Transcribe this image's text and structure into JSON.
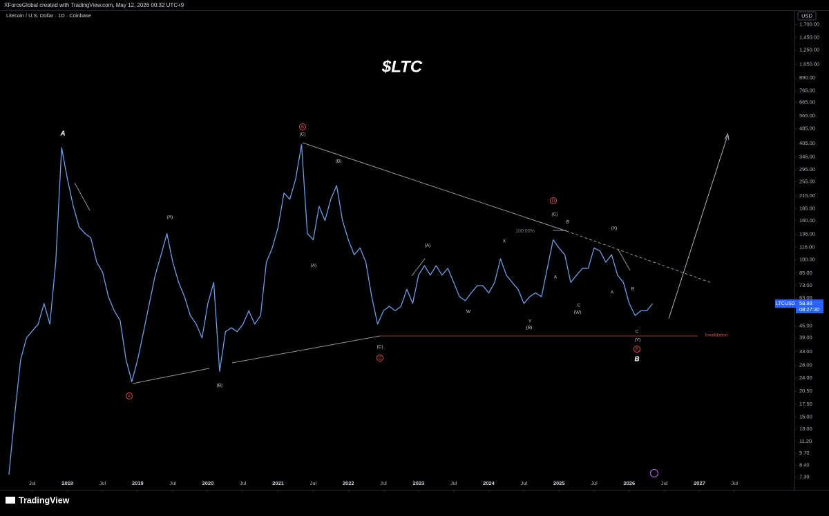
{
  "chart_data": {
    "type": "line",
    "credit": "XForceGlobal created with TradingView.com, May 12, 2026 00:32 UTC+9",
    "subtitle": "Litecoin / U.S. Dollar · 1D · Coinbase",
    "title": "$LTC",
    "currency": "USD",
    "symbol": "LTCUSD",
    "last_price": 58.88,
    "countdown": "08:27:30",
    "footer": "TradingView",
    "log_scale": true,
    "grid": false,
    "color": "#6f9fe6",
    "x": [
      "2017-03",
      "2017-04",
      "2017-05",
      "2017-06",
      "2017-08",
      "2017-09",
      "2017-10",
      "2017-11",
      "2017-12",
      "2018-01",
      "2018-02",
      "2018-03",
      "2018-04",
      "2018-05",
      "2018-06",
      "2018-07",
      "2018-08",
      "2018-09",
      "2018-10",
      "2018-11",
      "2018-12",
      "2019-01",
      "2019-02",
      "2019-03",
      "2019-04",
      "2019-05",
      "2019-06",
      "2019-07",
      "2019-08",
      "2019-09",
      "2019-10",
      "2019-11",
      "2019-12",
      "2020-01",
      "2020-02",
      "2020-03",
      "2020-04",
      "2020-05",
      "2020-06",
      "2020-07",
      "2020-08",
      "2020-09",
      "2020-10",
      "2020-11",
      "2020-12",
      "2021-01",
      "2021-02",
      "2021-03",
      "2021-04",
      "2021-05",
      "2021-06",
      "2021-07",
      "2021-08",
      "2021-09",
      "2021-10",
      "2021-11",
      "2021-12",
      "2022-01",
      "2022-02",
      "2022-03",
      "2022-04",
      "2022-05",
      "2022-06",
      "2022-07",
      "2022-08",
      "2022-09",
      "2022-10",
      "2022-11",
      "2022-12",
      "2023-01",
      "2023-02",
      "2023-03",
      "2023-04",
      "2023-05",
      "2023-06",
      "2023-07",
      "2023-08",
      "2023-09",
      "2023-10",
      "2023-11",
      "2023-12",
      "2024-01",
      "2024-02",
      "2024-03",
      "2024-04",
      "2024-05",
      "2024-06",
      "2024-07",
      "2024-08",
      "2024-09",
      "2024-10",
      "2024-11",
      "2024-12",
      "2025-01",
      "2025-02",
      "2025-03",
      "2025-04",
      "2025-05",
      "2025-06",
      "2025-07",
      "2025-08",
      "2025-09",
      "2025-10",
      "2025-11",
      "2025-12",
      "2026-01",
      "2026-02",
      "2026-03",
      "2026-04",
      "2026-05"
    ],
    "values": [
      7.5,
      15.6,
      30,
      39,
      46,
      59,
      46,
      97,
      385,
      264,
      190,
      148,
      137,
      130,
      97,
      86,
      64,
      54,
      48,
      30,
      23,
      30,
      42,
      59,
      83,
      106,
      137,
      97,
      76,
      64,
      51,
      46,
      39,
      59,
      76,
      26,
      42,
      44,
      42,
      46,
      54,
      46,
      51,
      97,
      115,
      148,
      223,
      207,
      264,
      400,
      137,
      127,
      190,
      160,
      207,
      244,
      160,
      127,
      106,
      115,
      97,
      64,
      46,
      54,
      57,
      54,
      57,
      70,
      59,
      83,
      93,
      83,
      93,
      83,
      90,
      76,
      64,
      61,
      67,
      73,
      73,
      67,
      76,
      101,
      83,
      76,
      70,
      59,
      64,
      67,
      64,
      90,
      127,
      115,
      106,
      76,
      83,
      90,
      90,
      115,
      111,
      97,
      106,
      83,
      76,
      59,
      51,
      54,
      54,
      58.88
    ],
    "xlim": [
      "2017-01",
      "2028-05"
    ],
    "xticks": [
      {
        "value": "2017-07",
        "label": "Jul"
      },
      {
        "value": "2018-01",
        "label": "2018"
      },
      {
        "value": "2018-07",
        "label": "Jul"
      },
      {
        "value": "2019-01",
        "label": "2019"
      },
      {
        "value": "2019-07",
        "label": "Jul"
      },
      {
        "value": "2020-01",
        "label": "2020"
      },
      {
        "value": "2020-07",
        "label": "Jul"
      },
      {
        "value": "2021-01",
        "label": "2021"
      },
      {
        "value": "2021-07",
        "label": "Jul"
      },
      {
        "value": "2022-01",
        "label": "2022"
      },
      {
        "value": "2022-07",
        "label": "Jul"
      },
      {
        "value": "2023-01",
        "label": "2023"
      },
      {
        "value": "2023-07",
        "label": "Jul"
      },
      {
        "value": "2024-01",
        "label": "2024"
      },
      {
        "value": "2024-07",
        "label": "Jul"
      },
      {
        "value": "2025-01",
        "label": "2025"
      },
      {
        "value": "2025-07",
        "label": "Jul"
      },
      {
        "value": "2026-01",
        "label": "2026"
      },
      {
        "value": "2026-07",
        "label": "Jul"
      },
      {
        "value": "2027-01",
        "label": "2027"
      },
      {
        "value": "2027-07",
        "label": "Jul"
      }
    ],
    "ylim": [
      6.8,
      1930
    ],
    "yticks": [
      {
        "value": 1700,
        "label": "1,700.00"
      },
      {
        "value": 1450,
        "label": "1,450.00"
      },
      {
        "value": 1250,
        "label": "1,250.00"
      },
      {
        "value": 1050,
        "label": "1,050.00"
      },
      {
        "value": 890,
        "label": "890.00"
      },
      {
        "value": 765,
        "label": "765.00"
      },
      {
        "value": 665,
        "label": "665.00"
      },
      {
        "value": 565,
        "label": "565.00"
      },
      {
        "value": 485,
        "label": "485.00"
      },
      {
        "value": 405,
        "label": "405.00"
      },
      {
        "value": 345,
        "label": "345.00"
      },
      {
        "value": 295,
        "label": "295.00"
      },
      {
        "value": 255,
        "label": "255.00"
      },
      {
        "value": 215,
        "label": "215.00"
      },
      {
        "value": 185,
        "label": "185.00"
      },
      {
        "value": 160,
        "label": "160.00"
      },
      {
        "value": 136,
        "label": "136.00"
      },
      {
        "value": 116,
        "label": "116.00"
      },
      {
        "value": 100,
        "label": "100.00"
      },
      {
        "value": 85,
        "label": "85.00"
      },
      {
        "value": 73,
        "label": "73.00"
      },
      {
        "value": 63,
        "label": "63.00"
      },
      {
        "value": 45,
        "label": "45.00"
      },
      {
        "value": 39,
        "label": "39.00"
      },
      {
        "value": 33,
        "label": "33.00"
      },
      {
        "value": 28,
        "label": "28.00"
      },
      {
        "value": 24,
        "label": "24.00"
      },
      {
        "value": 20.5,
        "label": "20.50"
      },
      {
        "value": 17.5,
        "label": "17.50"
      },
      {
        "value": 15,
        "label": "15.00"
      },
      {
        "value": 13,
        "label": "13.00"
      },
      {
        "value": 11.2,
        "label": "11.20"
      },
      {
        "value": 9.7,
        "label": "9.70"
      },
      {
        "value": 8.4,
        "label": "8.40"
      },
      {
        "value": 7.3,
        "label": "7.30"
      }
    ],
    "annotations": [
      "A",
      "B",
      "(C)",
      "(B)",
      "(A)",
      "(A)",
      "A",
      "(B)",
      "(C)",
      "C",
      "(A)",
      "W",
      "X",
      "Y",
      "(B)",
      "D",
      "(C)",
      "B",
      "A",
      "C",
      "(W)",
      "(X)",
      "B",
      "A",
      "C",
      "(Y)",
      "E",
      "B",
      "100.00%",
      "Invalidation"
    ]
  }
}
